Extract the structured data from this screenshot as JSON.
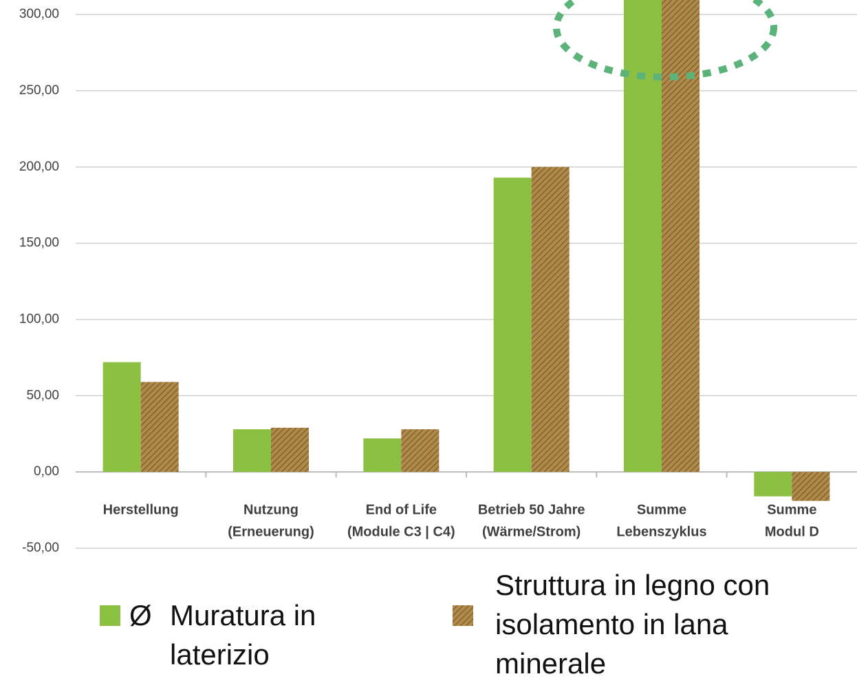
{
  "chart_data": {
    "type": "bar",
    "categories": [
      [
        "Herstellung"
      ],
      [
        "Nutzung",
        "(Erneuerung)"
      ],
      [
        "End of Life",
        "(Module C3 | C4)"
      ],
      [
        "Betrieb 50 Jahre",
        "(Wärme/Strom)"
      ],
      [
        "Summe",
        "Lebenszyklus"
      ],
      [
        "Summe",
        "Modul D"
      ]
    ],
    "series": [
      {
        "name": "Muratura in laterizio",
        "color": "#8cc043",
        "hatch": false,
        "values": [
          72,
          28,
          22,
          193,
          315,
          16
        ]
      },
      {
        "name": "Struttura in legno con isolamento in lana minerale",
        "color": "#b08a4a",
        "hatch": true,
        "values": [
          59,
          29,
          28,
          200,
          317,
          19
        ]
      }
    ],
    "legend_marker_text": "Ø",
    "ylim": [
      -50,
      309.5
    ],
    "yticks": [
      {
        "value": -50,
        "label": "-50,00"
      },
      {
        "value": 0,
        "label": "0,00"
      },
      {
        "value": 50,
        "label": "50,00"
      },
      {
        "value": 100,
        "label": "100,00"
      },
      {
        "value": 150,
        "label": "150,00"
      },
      {
        "value": 200,
        "label": "200,00"
      },
      {
        "value": 250,
        "label": "250,00"
      },
      {
        "value": 300,
        "label": "300,00"
      }
    ],
    "grid": true
  }
}
